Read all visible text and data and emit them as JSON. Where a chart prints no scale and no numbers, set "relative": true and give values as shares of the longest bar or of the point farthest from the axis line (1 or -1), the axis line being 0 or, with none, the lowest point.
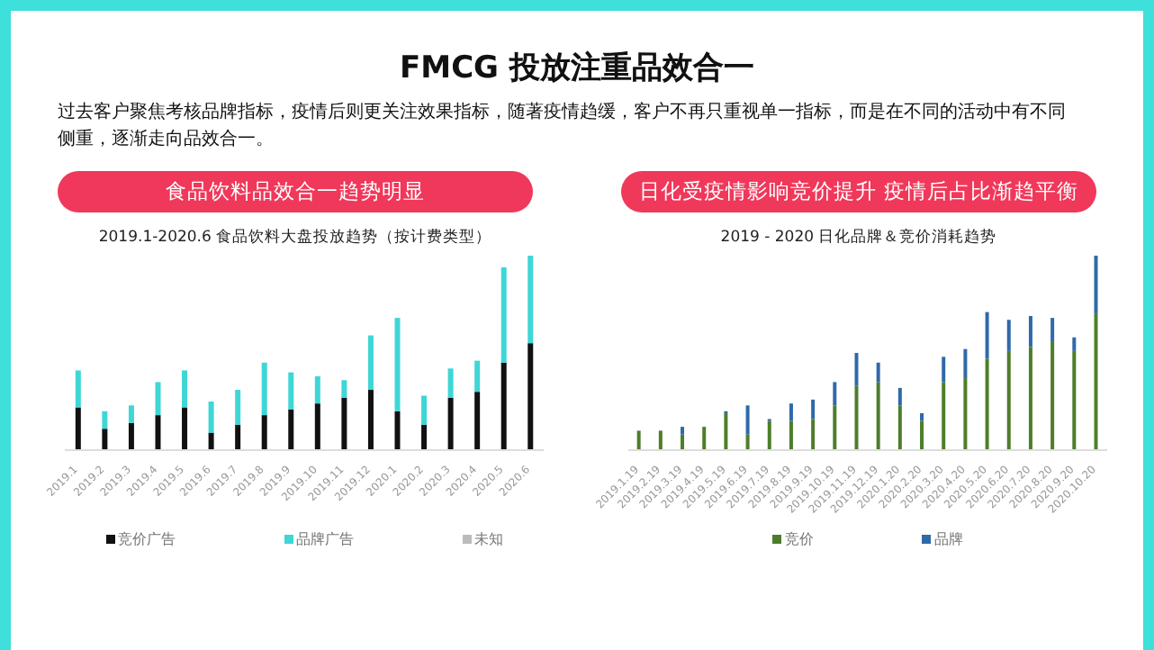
{
  "chart_data": [
    {
      "type": "bar",
      "title": "2019.1-2020.6 食品饮料大盘投放趋势（按计费类型）",
      "subtitle": "食品饮料品效合一趋势明显",
      "annotations": [
        "FMCG 投放注重品效合一",
        "过去客户聚焦考核品牌指标，疫情后则更关注效果指标，随著疫情趋缓，客户不再只重视单一指标，而是在不同的活动中有不同侧重，逐渐走向品效合一。"
      ],
      "relative": true,
      "stacked": true,
      "legend": "bottom",
      "categories": [
        "2019.1",
        "2019.2",
        "2019.3",
        "2019.4",
        "2019.5",
        "2019.6",
        "2019.7",
        "2019.8",
        "2019.9",
        "2019.10",
        "2019.11",
        "2019.12",
        "2020.1",
        "2020.2",
        "2020.3",
        "2020.4",
        "2020.5",
        "2020.6"
      ],
      "series": [
        {
          "name": "竞价广告",
          "color": "#111111",
          "values": [
            0.22,
            0.11,
            0.14,
            0.18,
            0.22,
            0.09,
            0.13,
            0.18,
            0.21,
            0.24,
            0.27,
            0.31,
            0.2,
            0.13,
            0.27,
            0.3,
            0.45,
            0.55
          ]
        },
        {
          "name": "品牌广告",
          "color": "#3fd6d6",
          "values": [
            0.19,
            0.09,
            0.09,
            0.17,
            0.19,
            0.16,
            0.18,
            0.27,
            0.19,
            0.14,
            0.09,
            0.28,
            0.48,
            0.15,
            0.15,
            0.16,
            0.49,
            0.45
          ]
        },
        {
          "name": "未知",
          "color": "#bbbbbb",
          "values": [
            0,
            0,
            0,
            0,
            0,
            0,
            0,
            0,
            0,
            0,
            0,
            0,
            0,
            0,
            0,
            0,
            0,
            0
          ]
        }
      ]
    },
    {
      "type": "bar",
      "title": "2019 - 2020 日化品牌＆竞价消耗趋势",
      "subtitle": "日化受疫情影响竞价提升 疫情后占比渐趋平衡",
      "relative": true,
      "stacked": true,
      "legend": "bottom",
      "categories": [
        "2019.1.19",
        "2019.2.19",
        "2019.3.19",
        "2019.4.19",
        "2019.5.19",
        "2019.6.19",
        "2019.7.19",
        "2019.8.19",
        "2019.9.19",
        "2019.10.19",
        "2019.11.19",
        "2019.12.19",
        "2020.1.20",
        "2020.2.20",
        "2020.3.20",
        "2020.4.20",
        "2020.5.20",
        "2020.6.20",
        "2020.7.20",
        "2020.8.20",
        "2020.9.20",
        "2020.10.20"
      ],
      "series": [
        {
          "name": "竞价",
          "color": "#4e7d2a",
          "values": [
            0.1,
            0.1,
            0.08,
            0.12,
            0.19,
            0.08,
            0.15,
            0.15,
            0.16,
            0.23,
            0.33,
            0.35,
            0.23,
            0.15,
            0.35,
            0.37,
            0.47,
            0.51,
            0.53,
            0.56,
            0.51,
            0.7
          ]
        },
        {
          "name": "品牌",
          "color": "#2f6aa8",
          "values": [
            0,
            0,
            0.04,
            0,
            0.01,
            0.15,
            0.01,
            0.09,
            0.1,
            0.12,
            0.17,
            0.1,
            0.09,
            0.04,
            0.13,
            0.15,
            0.24,
            0.16,
            0.16,
            0.12,
            0.07,
            0.3
          ]
        }
      ]
    }
  ]
}
